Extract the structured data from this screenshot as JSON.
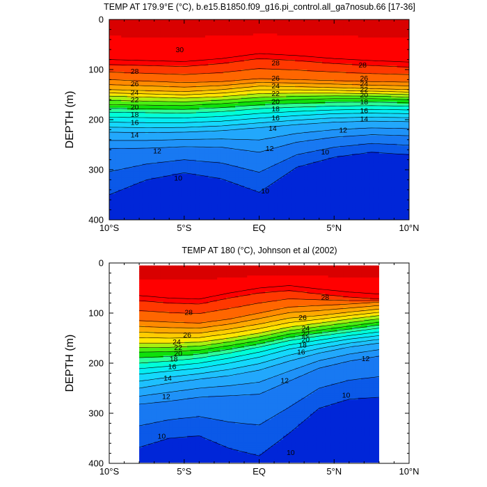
{
  "chart_data": [
    {
      "type": "contour",
      "title": "TEMP AT 179.9°E (°C), b.e15.B1850.f09_g16.pi_control.all_ga7nosub.66 [17-36]",
      "xlabel": "",
      "ylabel": "DEPTH (m)",
      "xlim": [
        -10,
        10
      ],
      "ylim": [
        400,
        0
      ],
      "x_ticks": [
        "10°S",
        "5°S",
        "EQ",
        "5°N",
        "10°N"
      ],
      "y_ticks": [
        "0",
        "100",
        "200",
        "300",
        "400"
      ],
      "contour_interval": 1,
      "data_extent_lat": [
        -10,
        10
      ],
      "isotherms": [
        {
          "level": 28,
          "lat": [
            -10,
            -7.5,
            -5,
            -2.5,
            0,
            2.5,
            5,
            7.5,
            10
          ],
          "depth": [
            90,
            92,
            94,
            88,
            78,
            82,
            88,
            92,
            95
          ]
        },
        {
          "level": 26,
          "lat": [
            -10,
            -7.5,
            -5,
            -2.5,
            0,
            2.5,
            5,
            7.5,
            10
          ],
          "depth": [
            120,
            123,
            126,
            124,
            118,
            120,
            122,
            124,
            125
          ]
        },
        {
          "level": 24,
          "lat": [
            -10,
            -7.5,
            -5,
            -2.5,
            0,
            2.5,
            5,
            7.5,
            10
          ],
          "depth": [
            140,
            142,
            144,
            140,
            133,
            134,
            136,
            138,
            140
          ]
        },
        {
          "level": 22,
          "lat": [
            -10,
            -7.5,
            -5,
            -2.5,
            0,
            2.5,
            5,
            7.5,
            10
          ],
          "depth": [
            153,
            155,
            157,
            154,
            148,
            147,
            147,
            148,
            150
          ]
        },
        {
          "level": 20,
          "lat": [
            -10,
            -7.5,
            -5,
            -2.5,
            0,
            2.5,
            5,
            7.5,
            10
          ],
          "depth": [
            170,
            171,
            172,
            168,
            163,
            160,
            158,
            158,
            160
          ]
        },
        {
          "level": 18,
          "lat": [
            -10,
            -7.5,
            -5,
            -2.5,
            0,
            2.5,
            5,
            7.5,
            10
          ],
          "depth": [
            185,
            186,
            187,
            184,
            178,
            175,
            173,
            172,
            173
          ]
        },
        {
          "level": 16,
          "lat": [
            -10,
            -7.5,
            -5,
            -2.5,
            0,
            2.5,
            5,
            7.5,
            10
          ],
          "depth": [
            205,
            206,
            206,
            203,
            197,
            192,
            188,
            187,
            188
          ]
        },
        {
          "level": 14,
          "lat": [
            -10,
            -7.5,
            -5,
            -2.5,
            0,
            2.5,
            5,
            7.5,
            10
          ],
          "depth": [
            225,
            226,
            225,
            222,
            216,
            210,
            205,
            203,
            204
          ]
        },
        {
          "level": 12,
          "lat": [
            -10,
            -7.5,
            -5,
            -2.5,
            0,
            2.5,
            5,
            7.5,
            10
          ],
          "depth": [
            258,
            257,
            254,
            255,
            265,
            245,
            235,
            230,
            232
          ]
        },
        {
          "level": 10,
          "lat": [
            -10,
            -7.5,
            -5,
            -2.5,
            0,
            2.5,
            5,
            7.5,
            10
          ],
          "depth": [
            350,
            320,
            306,
            318,
            345,
            295,
            275,
            265,
            270
          ]
        }
      ],
      "contour_labels": [
        {
          "text": "30",
          "lat": -5.3,
          "depth": 60
        },
        {
          "text": "28",
          "lat": -8.3,
          "depth": 103
        },
        {
          "text": "28",
          "lat": 1.1,
          "depth": 86
        },
        {
          "text": "28",
          "lat": 6.9,
          "depth": 90
        },
        {
          "text": "26",
          "lat": -8.3,
          "depth": 128
        },
        {
          "text": "26",
          "lat": 1.1,
          "depth": 117
        },
        {
          "text": "26",
          "lat": 7.0,
          "depth": 117
        },
        {
          "text": "24",
          "lat": -8.3,
          "depth": 145
        },
        {
          "text": "24",
          "lat": 1.1,
          "depth": 132
        },
        {
          "text": "24",
          "lat": 7.0,
          "depth": 128
        },
        {
          "text": "22",
          "lat": -8.3,
          "depth": 160
        },
        {
          "text": "22",
          "lat": 1.1,
          "depth": 147
        },
        {
          "text": "22",
          "lat": 7.0,
          "depth": 139
        },
        {
          "text": "20",
          "lat": -8.3,
          "depth": 174
        },
        {
          "text": "20",
          "lat": 1.1,
          "depth": 163
        },
        {
          "text": "20",
          "lat": 7.0,
          "depth": 150
        },
        {
          "text": "18",
          "lat": -8.3,
          "depth": 189
        },
        {
          "text": "18",
          "lat": 1.1,
          "depth": 178
        },
        {
          "text": "18",
          "lat": 7.0,
          "depth": 164
        },
        {
          "text": "16",
          "lat": -8.3,
          "depth": 205
        },
        {
          "text": "16",
          "lat": 1.1,
          "depth": 196
        },
        {
          "text": "16",
          "lat": 7.0,
          "depth": 181
        },
        {
          "text": "14",
          "lat": -8.3,
          "depth": 230
        },
        {
          "text": "14",
          "lat": 0.9,
          "depth": 217
        },
        {
          "text": "14",
          "lat": 7.0,
          "depth": 198
        },
        {
          "text": "12",
          "lat": -6.8,
          "depth": 262
        },
        {
          "text": "12",
          "lat": 0.7,
          "depth": 257
        },
        {
          "text": "12",
          "lat": 5.6,
          "depth": 220
        },
        {
          "text": "10",
          "lat": -5.4,
          "depth": 316
        },
        {
          "text": "10",
          "lat": 0.4,
          "depth": 342
        },
        {
          "text": "10",
          "lat": 4.4,
          "depth": 264
        }
      ]
    },
    {
      "type": "contour",
      "title": "TEMP AT 180 (°C), Johnson et al (2002)",
      "xlabel": "",
      "ylabel": "DEPTH (m)",
      "xlim": [
        -10,
        10
      ],
      "ylim": [
        400,
        0
      ],
      "x_ticks": [
        "10°S",
        "5°S",
        "EQ",
        "5°N",
        "10°N"
      ],
      "y_ticks": [
        "0",
        "100",
        "200",
        "300",
        "400"
      ],
      "contour_interval": 1,
      "data_extent_lat": [
        -8,
        8
      ],
      "data_extent_depth": [
        5,
        400
      ],
      "isotherms": [
        {
          "level": 28,
          "lat": [
            -8,
            -6,
            -4,
            -2,
            0,
            2,
            4,
            6,
            8
          ],
          "depth": [
            75,
            80,
            82,
            70,
            60,
            55,
            62,
            68,
            72
          ]
        },
        {
          "level": 26,
          "lat": [
            -8,
            -6,
            -4,
            -2,
            0,
            2,
            4,
            6,
            8
          ],
          "depth": [
            115,
            118,
            120,
            112,
            100,
            88,
            85,
            82,
            78
          ]
        },
        {
          "level": 24,
          "lat": [
            -8,
            -6,
            -4,
            -2,
            0,
            2,
            4,
            6,
            8
          ],
          "depth": [
            138,
            140,
            140,
            132,
            122,
            110,
            105,
            98,
            92
          ]
        },
        {
          "level": 22,
          "lat": [
            -8,
            -6,
            -4,
            -2,
            0,
            2,
            4,
            6,
            8
          ],
          "depth": [
            160,
            160,
            158,
            150,
            140,
            128,
            120,
            112,
            105
          ]
        },
        {
          "level": 20,
          "lat": [
            -8,
            -6,
            -4,
            -2,
            0,
            2,
            4,
            6,
            8
          ],
          "depth": [
            178,
            177,
            174,
            165,
            155,
            142,
            134,
            126,
            118
          ]
        },
        {
          "level": 18,
          "lat": [
            -8,
            -6,
            -4,
            -2,
            0,
            2,
            4,
            6,
            8
          ],
          "depth": [
            200,
            196,
            190,
            180,
            168,
            155,
            146,
            138,
            130
          ]
        },
        {
          "level": 16,
          "lat": [
            -8,
            -6,
            -4,
            -2,
            0,
            2,
            4,
            6,
            8
          ],
          "depth": [
            222,
            216,
            210,
            200,
            188,
            172,
            162,
            152,
            145
          ]
        },
        {
          "level": 14,
          "lat": [
            -8,
            -6,
            -4,
            -2,
            0,
            2,
            4,
            6,
            8
          ],
          "depth": [
            250,
            240,
            232,
            225,
            214,
            196,
            180,
            168,
            160
          ]
        },
        {
          "level": 12,
          "lat": [
            -8,
            -6,
            -4,
            -2,
            0,
            2,
            4,
            6,
            8
          ],
          "depth": [
            282,
            276,
            268,
            265,
            262,
            236,
            210,
            196,
            186
          ]
        },
        {
          "level": 10,
          "lat": [
            -8,
            -6,
            -4,
            -2,
            0,
            2,
            4,
            6,
            8
          ],
          "depth": [
            368,
            350,
            345,
            370,
            385,
            340,
            290,
            272,
            268
          ]
        }
      ],
      "contour_labels": [
        {
          "text": "28",
          "lat": -4.7,
          "depth": 98
        },
        {
          "text": "28",
          "lat": 4.4,
          "depth": 68
        },
        {
          "text": "26",
          "lat": -4.8,
          "depth": 143
        },
        {
          "text": "26",
          "lat": 2.9,
          "depth": 108
        },
        {
          "text": "24",
          "lat": -5.5,
          "depth": 157
        },
        {
          "text": "24",
          "lat": 3.1,
          "depth": 130
        },
        {
          "text": "22",
          "lat": -5.4,
          "depth": 168
        },
        {
          "text": "22",
          "lat": 3.1,
          "depth": 141
        },
        {
          "text": "20",
          "lat": -5.4,
          "depth": 180
        },
        {
          "text": "20",
          "lat": 3.1,
          "depth": 152
        },
        {
          "text": "18",
          "lat": -5.7,
          "depth": 191
        },
        {
          "text": "18",
          "lat": 2.9,
          "depth": 163
        },
        {
          "text": "16",
          "lat": -5.8,
          "depth": 206
        },
        {
          "text": "16",
          "lat": 2.8,
          "depth": 177
        },
        {
          "text": "14",
          "lat": -6.1,
          "depth": 229
        },
        {
          "text": "12",
          "lat": -6.2,
          "depth": 266
        },
        {
          "text": "12",
          "lat": 1.7,
          "depth": 234
        },
        {
          "text": "12",
          "lat": 7.1,
          "depth": 190
        },
        {
          "text": "10",
          "lat": -6.5,
          "depth": 345
        },
        {
          "text": "10",
          "lat": 2.1,
          "depth": 378
        },
        {
          "text": "10",
          "lat": 5.8,
          "depth": 263
        }
      ]
    }
  ],
  "colormap": {
    "levels": [
      10,
      11,
      12,
      13,
      14,
      15,
      16,
      17,
      18,
      19,
      20,
      21,
      22,
      23,
      24,
      25,
      26,
      27,
      28,
      29,
      30
    ],
    "colors": [
      "#0026d8",
      "#0b59e8",
      "#1879f2",
      "#1f92f8",
      "#22a8fc",
      "#1ec0fe",
      "#15d8fc",
      "#05ecf2",
      "#00ffd8",
      "#2cff98",
      "#0fe00a",
      "#4aef12",
      "#a8f010",
      "#ffe600",
      "#ffcc00",
      "#ffa800",
      "#ff8a00",
      "#ff6600",
      "#ff3800",
      "#ff0000",
      "#d90000",
      "#c00000"
    ]
  }
}
